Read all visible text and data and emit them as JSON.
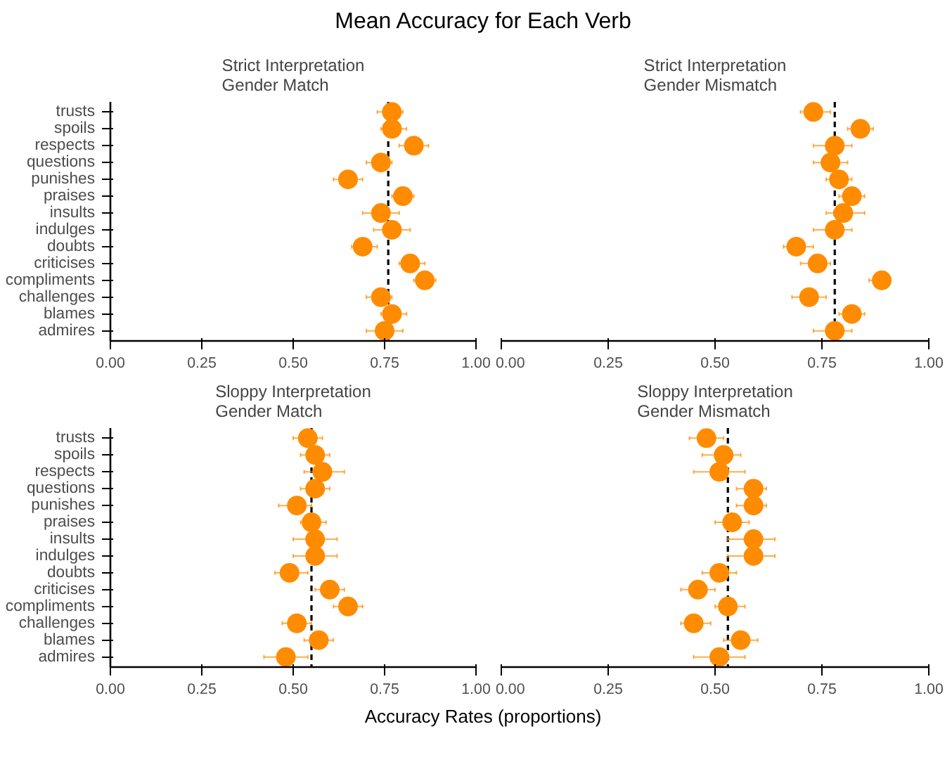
{
  "chart_data": [
    {
      "type": "scatter",
      "orientation": "horizontal",
      "title": "Strict Interpretation\nGender Match",
      "annotations": [
        "Mean Accuracy for Each Verb"
      ],
      "categories": [
        "trusts",
        "spoils",
        "respects",
        "questions",
        "punishes",
        "praises",
        "insults",
        "indulges",
        "doubts",
        "criticises",
        "compliments",
        "challenges",
        "blames",
        "admires"
      ],
      "series": [
        {
          "color": "#ff8c00",
          "values": [
            0.77,
            0.77,
            0.83,
            0.74,
            0.65,
            0.8,
            0.74,
            0.77,
            0.69,
            0.82,
            0.86,
            0.74,
            0.77,
            0.75
          ],
          "errors": [
            [
              0.73,
              0.8
            ],
            [
              0.74,
              0.81
            ],
            [
              0.79,
              0.87
            ],
            [
              0.7,
              0.77
            ],
            [
              0.61,
              0.69
            ],
            [
              0.77,
              0.83
            ],
            [
              0.69,
              0.79
            ],
            [
              0.72,
              0.82
            ],
            [
              0.66,
              0.73
            ],
            [
              0.79,
              0.86
            ],
            [
              0.83,
              0.89
            ],
            [
              0.7,
              0.77
            ],
            [
              0.74,
              0.81
            ],
            [
              0.7,
              0.8
            ]
          ]
        }
      ],
      "xlim": [
        0,
        1
      ],
      "xticks": [
        {
          "value": 0,
          "label": "0.00"
        },
        {
          "value": 0.25,
          "label": "0.25"
        },
        {
          "value": 0.5,
          "label": "0.50"
        },
        {
          "value": 0.75,
          "label": "0.75"
        },
        {
          "value": 1,
          "label": "1.00"
        }
      ],
      "ref_lines": [
        {
          "axis": "x",
          "value": 0.76,
          "color": "#000000",
          "line_style": "dashed"
        }
      ],
      "grid": false,
      "marker": "circle"
    },
    {
      "type": "scatter",
      "orientation": "horizontal",
      "title": "Strict Interpretation\nGender Mismatch",
      "tick_labels": "x",
      "categories": [
        null,
        null,
        null,
        null,
        null,
        null,
        null,
        null,
        null,
        null,
        null,
        null,
        null,
        null
      ],
      "series": [
        {
          "color": "#ff8c00",
          "values": [
            0.73,
            0.84,
            0.78,
            0.77,
            0.79,
            0.82,
            0.8,
            0.78,
            0.69,
            0.74,
            0.89,
            0.72,
            0.82,
            0.78
          ],
          "errors": [
            [
              0.7,
              0.77
            ],
            [
              0.81,
              0.87
            ],
            [
              0.73,
              0.82
            ],
            [
              0.73,
              0.81
            ],
            [
              0.76,
              0.82
            ],
            [
              0.79,
              0.85
            ],
            [
              0.76,
              0.85
            ],
            [
              0.73,
              0.82
            ],
            [
              0.66,
              0.73
            ],
            [
              0.7,
              0.77
            ],
            [
              0.86,
              0.91
            ],
            [
              0.68,
              0.76
            ],
            [
              0.79,
              0.85
            ],
            [
              0.73,
              0.82
            ]
          ]
        }
      ],
      "xlim": [
        0,
        1
      ],
      "xticks": [
        {
          "value": 0,
          "label": "0.00"
        },
        {
          "value": 0.25,
          "label": "0.25"
        },
        {
          "value": 0.5,
          "label": "0.50"
        },
        {
          "value": 0.75,
          "label": "0.75"
        },
        {
          "value": 1,
          "label": "1.00"
        }
      ],
      "ref_lines": [
        {
          "axis": "x",
          "value": 0.78,
          "color": "#000000",
          "line_style": "dashed"
        }
      ],
      "grid": false,
      "marker": "circle"
    },
    {
      "type": "scatter",
      "orientation": "horizontal",
      "title": "Sloppy Interpretation\nGender Match",
      "xlabel": "Accuracy Rates (proportions)",
      "categories": [
        "trusts",
        "spoils",
        "respects",
        "questions",
        "punishes",
        "praises",
        "insults",
        "indulges",
        "doubts",
        "criticises",
        "compliments",
        "challenges",
        "blames",
        "admires"
      ],
      "series": [
        {
          "color": "#ff8c00",
          "values": [
            0.54,
            0.56,
            0.58,
            0.56,
            0.51,
            0.55,
            0.56,
            0.56,
            0.49,
            0.6,
            0.65,
            0.51,
            0.57,
            0.48
          ],
          "errors": [
            [
              0.5,
              0.58
            ],
            [
              0.52,
              0.6
            ],
            [
              0.53,
              0.64
            ],
            [
              0.52,
              0.6
            ],
            [
              0.46,
              0.55
            ],
            [
              0.52,
              0.59
            ],
            [
              0.5,
              0.62
            ],
            [
              0.5,
              0.62
            ],
            [
              0.45,
              0.54
            ],
            [
              0.56,
              0.64
            ],
            [
              0.61,
              0.69
            ],
            [
              0.47,
              0.55
            ],
            [
              0.53,
              0.61
            ],
            [
              0.42,
              0.54
            ]
          ]
        }
      ],
      "xlim": [
        0,
        1
      ],
      "xticks": [
        {
          "value": 0,
          "label": "0.00"
        },
        {
          "value": 0.25,
          "label": "0.25"
        },
        {
          "value": 0.5,
          "label": "0.50"
        },
        {
          "value": 0.75,
          "label": "0.75"
        },
        {
          "value": 1,
          "label": "1.00"
        }
      ],
      "ref_lines": [
        {
          "axis": "x",
          "value": 0.55,
          "color": "#000000",
          "line_style": "dashed"
        }
      ],
      "grid": false,
      "marker": "circle"
    },
    {
      "type": "scatter",
      "orientation": "horizontal",
      "title": "Sloppy Interpretation\nGender Mismatch",
      "tick_labels": "x",
      "categories": [
        null,
        null,
        null,
        null,
        null,
        null,
        null,
        null,
        null,
        null,
        null,
        null,
        null,
        null
      ],
      "series": [
        {
          "color": "#ff8c00",
          "values": [
            0.48,
            0.52,
            0.51,
            0.59,
            0.59,
            0.54,
            0.59,
            0.59,
            0.51,
            0.46,
            0.53,
            0.45,
            0.56,
            0.51
          ],
          "errors": [
            [
              0.44,
              0.52
            ],
            [
              0.47,
              0.56
            ],
            [
              0.45,
              0.57
            ],
            [
              0.55,
              0.62
            ],
            [
              0.55,
              0.62
            ],
            [
              0.5,
              0.58
            ],
            [
              0.53,
              0.64
            ],
            [
              0.53,
              0.64
            ],
            [
              0.47,
              0.55
            ],
            [
              0.42,
              0.5
            ],
            [
              0.5,
              0.57
            ],
            [
              0.42,
              0.49
            ],
            [
              0.52,
              0.6
            ],
            [
              0.45,
              0.57
            ]
          ]
        }
      ],
      "xlim": [
        0,
        1
      ],
      "xticks": [
        {
          "value": 0,
          "label": "0.00"
        },
        {
          "value": 0.25,
          "label": "0.25"
        },
        {
          "value": 0.5,
          "label": "0.50"
        },
        {
          "value": 0.75,
          "label": "0.75"
        },
        {
          "value": 1,
          "label": "1.00"
        }
      ],
      "ref_lines": [
        {
          "axis": "x",
          "value": 0.53,
          "color": "#000000",
          "line_style": "dashed"
        }
      ],
      "grid": false,
      "marker": "circle"
    }
  ]
}
